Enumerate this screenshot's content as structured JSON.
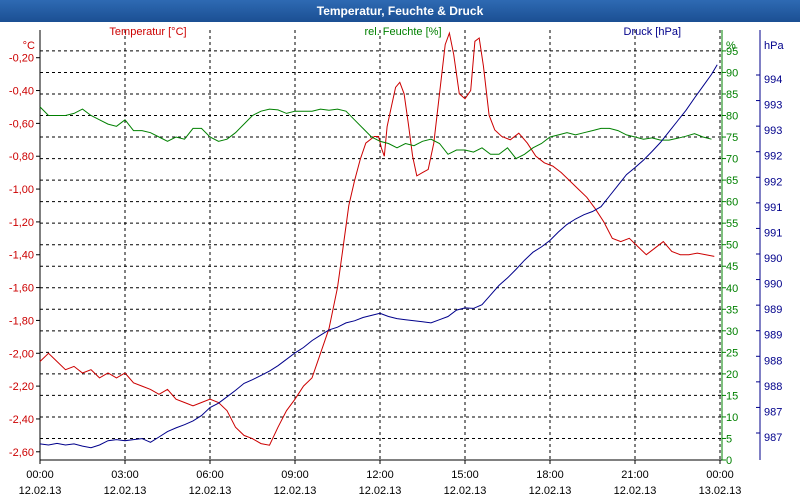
{
  "window": {
    "title": "Temperatur, Feuchte & Druck"
  },
  "chart_data": {
    "type": "line",
    "title": "Temperatur, Feuchte & Druck",
    "x_ticks": [
      {
        "time": "00:00",
        "date": "12.02.13"
      },
      {
        "time": "03:00",
        "date": "12.02.13"
      },
      {
        "time": "06:00",
        "date": "12.02.13"
      },
      {
        "time": "09:00",
        "date": "12.02.13"
      },
      {
        "time": "12:00",
        "date": "12.02.13"
      },
      {
        "time": "15:00",
        "date": "12.02.13"
      },
      {
        "time": "18:00",
        "date": "12.02.13"
      },
      {
        "time": "21:00",
        "date": "12.02.13"
      },
      {
        "time": "00:00",
        "date": "13.02.13"
      }
    ],
    "x_range_hours": [
      0,
      24
    ],
    "grid": true,
    "axes": {
      "temperature": {
        "label": "Temperatur [°C]",
        "unit": "°C",
        "color": "#cc0000",
        "range": [
          -2.65,
          -0.08
        ],
        "ticks": [
          "-0,20",
          "-0,40",
          "-0,60",
          "-0,80",
          "-1,00",
          "-1,20",
          "-1,40",
          "-1,60",
          "-1,80",
          "-2,00",
          "-2,20",
          "-2,40",
          "-2,60"
        ]
      },
      "humidity": {
        "label": "rel. Feuchte [%]",
        "unit": "%",
        "color": "#008000",
        "range": [
          0,
          98
        ],
        "ticks": [
          "95",
          "90",
          "85",
          "80",
          "75",
          "70",
          "65",
          "60",
          "55",
          "50",
          "45",
          "40",
          "35",
          "30",
          "25",
          "20",
          "15",
          "10",
          "5",
          "0"
        ]
      },
      "pressure": {
        "label": "Druck [hPa]",
        "unit": "hPa",
        "color": "#00008b",
        "range": [
          986.62,
          994.5
        ],
        "ticks": [
          "994",
          "993",
          "993",
          "992",
          "992",
          "991",
          "991",
          "990",
          "990",
          "989",
          "989",
          "988",
          "988",
          "987",
          "987"
        ]
      }
    },
    "series": [
      {
        "name": "Temperatur",
        "axis": "temperature",
        "color": "#cc0000",
        "points": [
          [
            0.0,
            -2.05
          ],
          [
            0.3,
            -2.0
          ],
          [
            0.6,
            -2.05
          ],
          [
            0.9,
            -2.1
          ],
          [
            1.2,
            -2.08
          ],
          [
            1.5,
            -2.12
          ],
          [
            1.8,
            -2.1
          ],
          [
            2.1,
            -2.15
          ],
          [
            2.4,
            -2.12
          ],
          [
            2.7,
            -2.15
          ],
          [
            3.0,
            -2.12
          ],
          [
            3.3,
            -2.18
          ],
          [
            3.6,
            -2.2
          ],
          [
            3.9,
            -2.22
          ],
          [
            4.2,
            -2.25
          ],
          [
            4.5,
            -2.22
          ],
          [
            4.8,
            -2.28
          ],
          [
            5.1,
            -2.3
          ],
          [
            5.4,
            -2.32
          ],
          [
            5.7,
            -2.3
          ],
          [
            6.0,
            -2.28
          ],
          [
            6.3,
            -2.3
          ],
          [
            6.6,
            -2.35
          ],
          [
            6.9,
            -2.45
          ],
          [
            7.2,
            -2.5
          ],
          [
            7.5,
            -2.52
          ],
          [
            7.8,
            -2.55
          ],
          [
            8.1,
            -2.56
          ],
          [
            8.4,
            -2.45
          ],
          [
            8.7,
            -2.35
          ],
          [
            9.0,
            -2.28
          ],
          [
            9.3,
            -2.2
          ],
          [
            9.6,
            -2.15
          ],
          [
            9.9,
            -2.0
          ],
          [
            10.2,
            -1.85
          ],
          [
            10.5,
            -1.6
          ],
          [
            10.7,
            -1.35
          ],
          [
            10.9,
            -1.1
          ],
          [
            11.1,
            -0.95
          ],
          [
            11.3,
            -0.82
          ],
          [
            11.5,
            -0.72
          ],
          [
            11.8,
            -0.68
          ],
          [
            11.95,
            -0.68
          ],
          [
            12.05,
            -0.75
          ],
          [
            12.15,
            -0.8
          ],
          [
            12.25,
            -0.62
          ],
          [
            12.4,
            -0.5
          ],
          [
            12.55,
            -0.38
          ],
          [
            12.7,
            -0.35
          ],
          [
            12.85,
            -0.42
          ],
          [
            13.0,
            -0.6
          ],
          [
            13.15,
            -0.8
          ],
          [
            13.3,
            -0.92
          ],
          [
            13.5,
            -0.9
          ],
          [
            13.7,
            -0.88
          ],
          [
            13.9,
            -0.72
          ],
          [
            14.1,
            -0.42
          ],
          [
            14.3,
            -0.12
          ],
          [
            14.45,
            -0.05
          ],
          [
            14.6,
            -0.18
          ],
          [
            14.8,
            -0.42
          ],
          [
            15.0,
            -0.45
          ],
          [
            15.2,
            -0.4
          ],
          [
            15.35,
            -0.1
          ],
          [
            15.5,
            -0.08
          ],
          [
            15.65,
            -0.25
          ],
          [
            15.85,
            -0.55
          ],
          [
            16.05,
            -0.64
          ],
          [
            16.3,
            -0.68
          ],
          [
            16.6,
            -0.7
          ],
          [
            16.9,
            -0.66
          ],
          [
            17.2,
            -0.72
          ],
          [
            17.5,
            -0.8
          ],
          [
            17.8,
            -0.84
          ],
          [
            18.1,
            -0.86
          ],
          [
            18.4,
            -0.9
          ],
          [
            18.7,
            -0.95
          ],
          [
            19.0,
            -1.0
          ],
          [
            19.3,
            -1.05
          ],
          [
            19.6,
            -1.12
          ],
          [
            19.9,
            -1.2
          ],
          [
            20.2,
            -1.3
          ],
          [
            20.5,
            -1.32
          ],
          [
            20.8,
            -1.3
          ],
          [
            21.1,
            -1.35
          ],
          [
            21.4,
            -1.4
          ],
          [
            21.7,
            -1.36
          ],
          [
            22.0,
            -1.32
          ],
          [
            22.3,
            -1.38
          ],
          [
            22.6,
            -1.4
          ],
          [
            22.9,
            -1.4
          ],
          [
            23.2,
            -1.39
          ],
          [
            23.5,
            -1.4
          ],
          [
            23.8,
            -1.41
          ]
        ]
      },
      {
        "name": "rel. Feuchte",
        "axis": "humidity",
        "color": "#008000",
        "points": [
          [
            0.0,
            82
          ],
          [
            0.3,
            80
          ],
          [
            0.6,
            80
          ],
          [
            0.9,
            80
          ],
          [
            1.2,
            80.5
          ],
          [
            1.5,
            81.5
          ],
          [
            1.8,
            80
          ],
          [
            2.1,
            79
          ],
          [
            2.4,
            78
          ],
          [
            2.7,
            77.5
          ],
          [
            3.0,
            79
          ],
          [
            3.3,
            76.5
          ],
          [
            3.6,
            76.5
          ],
          [
            3.9,
            76
          ],
          [
            4.2,
            75
          ],
          [
            4.5,
            74
          ],
          [
            4.8,
            75
          ],
          [
            5.1,
            74.5
          ],
          [
            5.4,
            77
          ],
          [
            5.7,
            77
          ],
          [
            6.0,
            75
          ],
          [
            6.3,
            74
          ],
          [
            6.6,
            74.5
          ],
          [
            6.9,
            76
          ],
          [
            7.2,
            78
          ],
          [
            7.5,
            80
          ],
          [
            7.8,
            81
          ],
          [
            8.1,
            81.5
          ],
          [
            8.4,
            81.3
          ],
          [
            8.7,
            80.5
          ],
          [
            9.0,
            81
          ],
          [
            9.3,
            81
          ],
          [
            9.6,
            81
          ],
          [
            9.9,
            81.5
          ],
          [
            10.2,
            81.2
          ],
          [
            10.5,
            81.5
          ],
          [
            10.8,
            81
          ],
          [
            11.1,
            79
          ],
          [
            11.4,
            77
          ],
          [
            11.7,
            75
          ],
          [
            12.0,
            74
          ],
          [
            12.3,
            73.5
          ],
          [
            12.6,
            72.5
          ],
          [
            12.9,
            73.5
          ],
          [
            13.2,
            73
          ],
          [
            13.5,
            74
          ],
          [
            13.8,
            74.5
          ],
          [
            14.1,
            73.5
          ],
          [
            14.4,
            71
          ],
          [
            14.7,
            72
          ],
          [
            15.0,
            72
          ],
          [
            15.3,
            71.5
          ],
          [
            15.6,
            72.5
          ],
          [
            15.9,
            71
          ],
          [
            16.2,
            71
          ],
          [
            16.5,
            72.5
          ],
          [
            16.8,
            70
          ],
          [
            17.1,
            71
          ],
          [
            17.4,
            72.5
          ],
          [
            17.7,
            73.5
          ],
          [
            18.0,
            75
          ],
          [
            18.3,
            75.5
          ],
          [
            18.6,
            76
          ],
          [
            18.9,
            75.5
          ],
          [
            19.2,
            76
          ],
          [
            19.5,
            76.5
          ],
          [
            19.8,
            77
          ],
          [
            20.1,
            77
          ],
          [
            20.4,
            76.5
          ],
          [
            20.7,
            75.5
          ],
          [
            21.0,
            75
          ],
          [
            21.3,
            74.5
          ],
          [
            21.6,
            74.8
          ],
          [
            21.9,
            74.3
          ],
          [
            22.2,
            74.3
          ],
          [
            22.5,
            74.7
          ],
          [
            22.8,
            75.2
          ],
          [
            23.1,
            75.8
          ],
          [
            23.4,
            75
          ],
          [
            23.7,
            74.5
          ]
        ]
      },
      {
        "name": "Druck",
        "axis": "pressure",
        "color": "#00008b",
        "points": [
          [
            0.0,
            986.92
          ],
          [
            0.3,
            986.9
          ],
          [
            0.6,
            986.93
          ],
          [
            0.9,
            986.9
          ],
          [
            1.2,
            986.92
          ],
          [
            1.5,
            986.88
          ],
          [
            1.8,
            986.85
          ],
          [
            2.1,
            986.9
          ],
          [
            2.4,
            986.98
          ],
          [
            2.7,
            987.0
          ],
          [
            3.0,
            986.98
          ],
          [
            3.3,
            987.0
          ],
          [
            3.6,
            987.02
          ],
          [
            3.9,
            986.95
          ],
          [
            4.2,
            987.05
          ],
          [
            4.5,
            987.15
          ],
          [
            4.8,
            987.22
          ],
          [
            5.1,
            987.28
          ],
          [
            5.4,
            987.35
          ],
          [
            5.7,
            987.45
          ],
          [
            6.0,
            987.6
          ],
          [
            6.3,
            987.68
          ],
          [
            6.6,
            987.8
          ],
          [
            6.9,
            987.92
          ],
          [
            7.2,
            988.05
          ],
          [
            7.5,
            988.12
          ],
          [
            7.8,
            988.2
          ],
          [
            8.1,
            988.28
          ],
          [
            8.4,
            988.38
          ],
          [
            8.7,
            988.5
          ],
          [
            9.0,
            988.62
          ],
          [
            9.3,
            988.72
          ],
          [
            9.6,
            988.85
          ],
          [
            9.9,
            988.95
          ],
          [
            10.2,
            989.05
          ],
          [
            10.5,
            989.1
          ],
          [
            10.8,
            989.18
          ],
          [
            11.1,
            989.22
          ],
          [
            11.4,
            989.28
          ],
          [
            11.7,
            989.32
          ],
          [
            12.0,
            989.36
          ],
          [
            12.3,
            989.3
          ],
          [
            12.6,
            989.26
          ],
          [
            12.9,
            989.24
          ],
          [
            13.2,
            989.22
          ],
          [
            13.5,
            989.2
          ],
          [
            13.8,
            989.18
          ],
          [
            14.1,
            989.24
          ],
          [
            14.4,
            989.3
          ],
          [
            14.7,
            989.42
          ],
          [
            15.0,
            989.46
          ],
          [
            15.3,
            989.45
          ],
          [
            15.6,
            989.52
          ],
          [
            15.9,
            989.7
          ],
          [
            16.2,
            989.88
          ],
          [
            16.5,
            990.02
          ],
          [
            16.8,
            990.18
          ],
          [
            17.1,
            990.35
          ],
          [
            17.4,
            990.5
          ],
          [
            17.7,
            990.6
          ],
          [
            18.0,
            990.72
          ],
          [
            18.3,
            990.88
          ],
          [
            18.6,
            991.02
          ],
          [
            18.9,
            991.12
          ],
          [
            19.2,
            991.2
          ],
          [
            19.5,
            991.26
          ],
          [
            19.8,
            991.35
          ],
          [
            20.1,
            991.55
          ],
          [
            20.4,
            991.75
          ],
          [
            20.7,
            991.95
          ],
          [
            21.0,
            992.08
          ],
          [
            21.3,
            992.22
          ],
          [
            21.6,
            992.38
          ],
          [
            21.9,
            992.55
          ],
          [
            22.2,
            992.75
          ],
          [
            22.5,
            992.95
          ],
          [
            22.8,
            993.15
          ],
          [
            23.1,
            993.38
          ],
          [
            23.4,
            993.6
          ],
          [
            23.7,
            993.82
          ],
          [
            23.9,
            994.0
          ]
        ]
      }
    ]
  }
}
